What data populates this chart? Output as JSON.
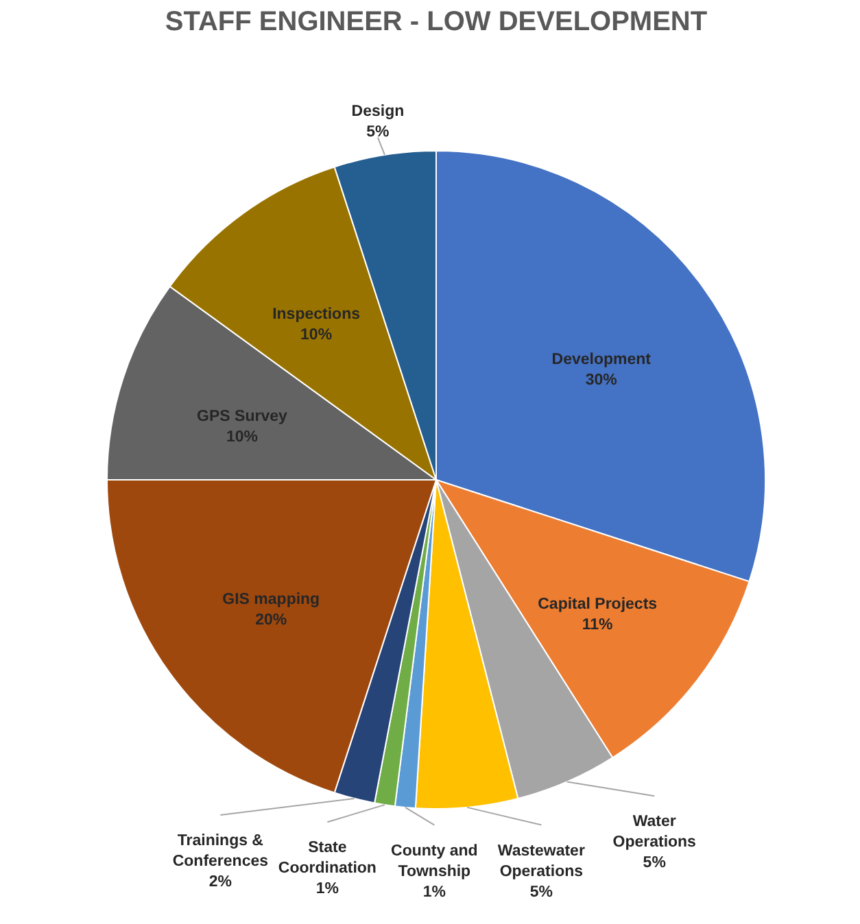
{
  "chart_data": {
    "type": "pie",
    "title": "STAFF ENGINEER - LOW DEVELOPMENT",
    "categories": [
      "Development",
      "Capital Projects",
      "Water Operations",
      "Wastewater Operations",
      "County and Township",
      "State Coordination",
      "Trainings & Conferences",
      "GIS mapping",
      "GPS Survey",
      "Inspections",
      "Design"
    ],
    "values": [
      30,
      11,
      5,
      5,
      1,
      1,
      2,
      20,
      10,
      10,
      5
    ],
    "colors": [
      "#4472c4",
      "#ed7d31",
      "#a5a5a5",
      "#ffc000",
      "#5b9bd5",
      "#70ad47",
      "#264478",
      "#9e480e",
      "#636363",
      "#997300",
      "#255e91"
    ],
    "value_labels": [
      "30%",
      "11%",
      "5%",
      "5%",
      "1%",
      "1%",
      "2%",
      "20%",
      "10%",
      "10%",
      "5%"
    ]
  }
}
